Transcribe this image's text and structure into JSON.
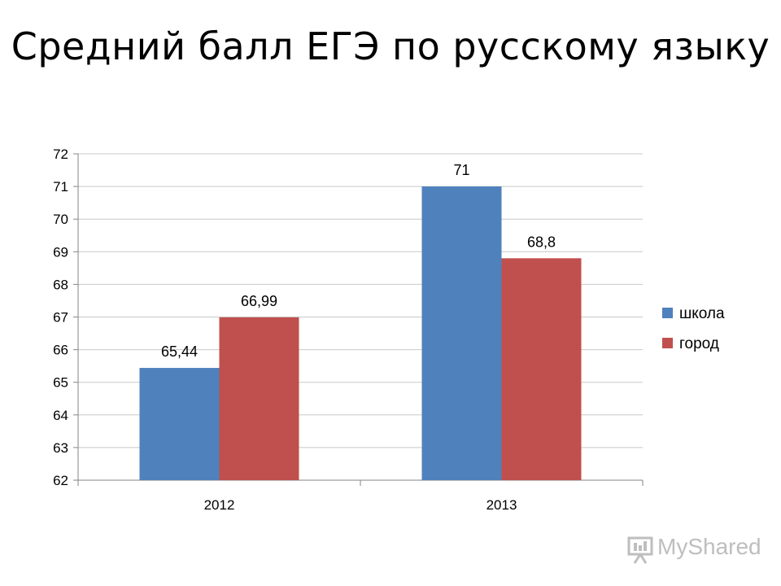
{
  "slide": {
    "title": "Средний балл ЕГЭ по русскому языку"
  },
  "chart_data": {
    "type": "bar",
    "title": "",
    "xlabel": "",
    "ylabel": "",
    "categories": [
      "2012",
      "2013"
    ],
    "series": [
      {
        "name": "школа",
        "values": [
          65.44,
          71
        ],
        "labels": [
          "65,44",
          "71"
        ],
        "color": "#4F81BD"
      },
      {
        "name": "город",
        "values": [
          66.99,
          68.8
        ],
        "labels": [
          "66,99",
          "68,8"
        ],
        "color": "#C0504D"
      }
    ],
    "ylim": [
      62,
      72
    ],
    "yticks": [
      62,
      63,
      64,
      65,
      66,
      67,
      68,
      69,
      70,
      71,
      72
    ],
    "grid": true,
    "legend_position": "right"
  },
  "watermark": {
    "text": "MyShared",
    "icon": "presentation-board-icon"
  }
}
